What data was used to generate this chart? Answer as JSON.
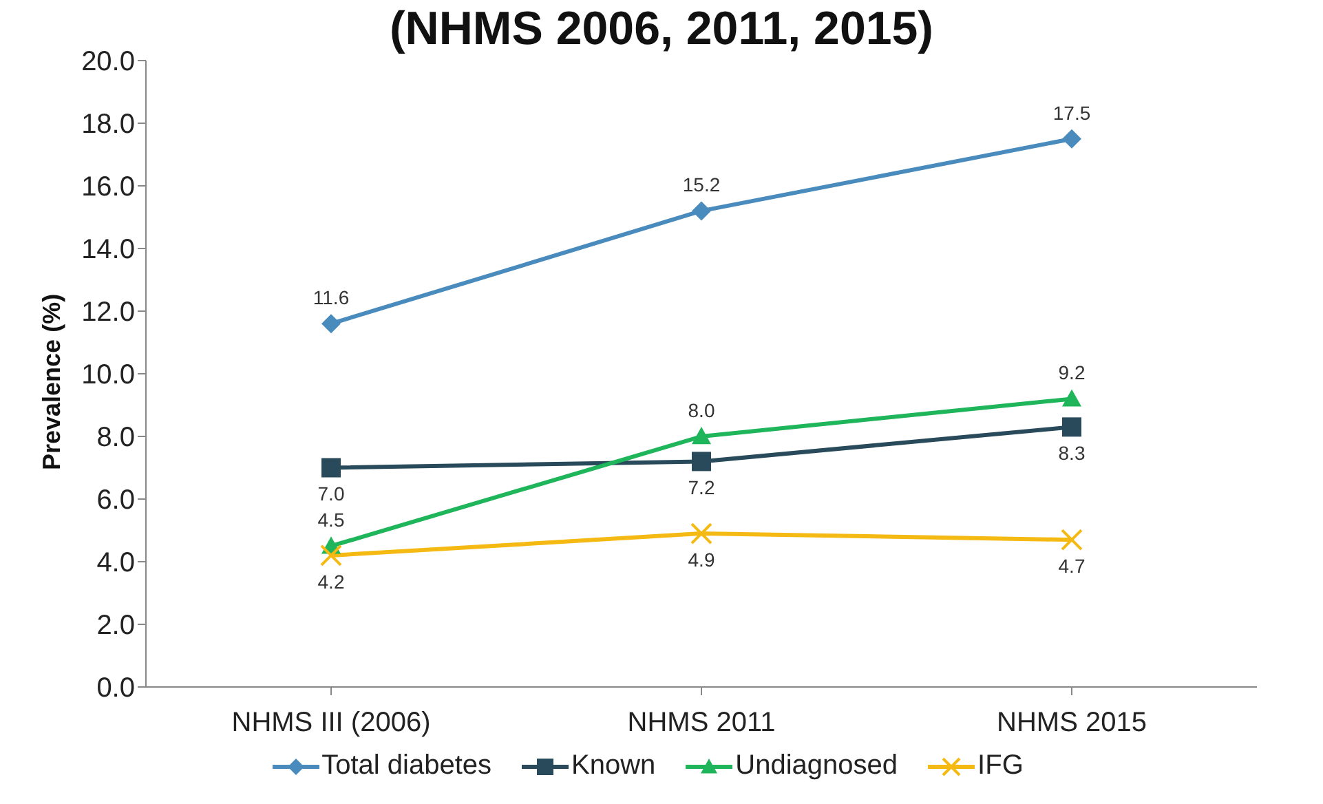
{
  "chart_data": {
    "type": "line",
    "title": "(NHMS 2006, 2011, 2015)",
    "ylabel": "Prevalence (%)",
    "categories": [
      "NHMS III (2006)",
      "NHMS 2011",
      "NHMS 2015"
    ],
    "series": [
      {
        "name": "Total diabetes",
        "color": "#4a8bbd",
        "marker": "diamond",
        "values": [
          11.6,
          15.2,
          17.5
        ],
        "value_labels": [
          "11.6",
          "15.2",
          "17.5"
        ]
      },
      {
        "name": "Known",
        "color": "#284a5a",
        "marker": "square",
        "values": [
          7.0,
          7.2,
          8.3
        ],
        "value_labels": [
          "7.0",
          "7.2",
          "8.3"
        ]
      },
      {
        "name": "Undiagnosed",
        "color": "#1fb55a",
        "marker": "triangle",
        "values": [
          4.5,
          8.0,
          9.2
        ],
        "value_labels": [
          "4.5",
          "8.0",
          "9.2"
        ]
      },
      {
        "name": "IFG",
        "color": "#f5b914",
        "marker": "cross",
        "values": [
          4.2,
          4.9,
          4.7
        ],
        "value_labels": [
          "4.2",
          "4.9",
          "4.7"
        ]
      }
    ],
    "ylim": [
      0,
      20
    ],
    "yticks": [
      {
        "value": 0,
        "label": "0.0"
      },
      {
        "value": 2,
        "label": "2.0"
      },
      {
        "value": 4,
        "label": "4.0"
      },
      {
        "value": 6,
        "label": "6.0"
      },
      {
        "value": 8,
        "label": "8.0"
      },
      {
        "value": 10,
        "label": "10.0"
      },
      {
        "value": 12,
        "label": "12.0"
      },
      {
        "value": 14,
        "label": "14.0"
      },
      {
        "value": 16,
        "label": "16.0"
      },
      {
        "value": 18,
        "label": "18.0"
      },
      {
        "value": 20,
        "label": "20.0"
      }
    ],
    "grid": false,
    "legend": "bottom",
    "line_style": "solid"
  }
}
